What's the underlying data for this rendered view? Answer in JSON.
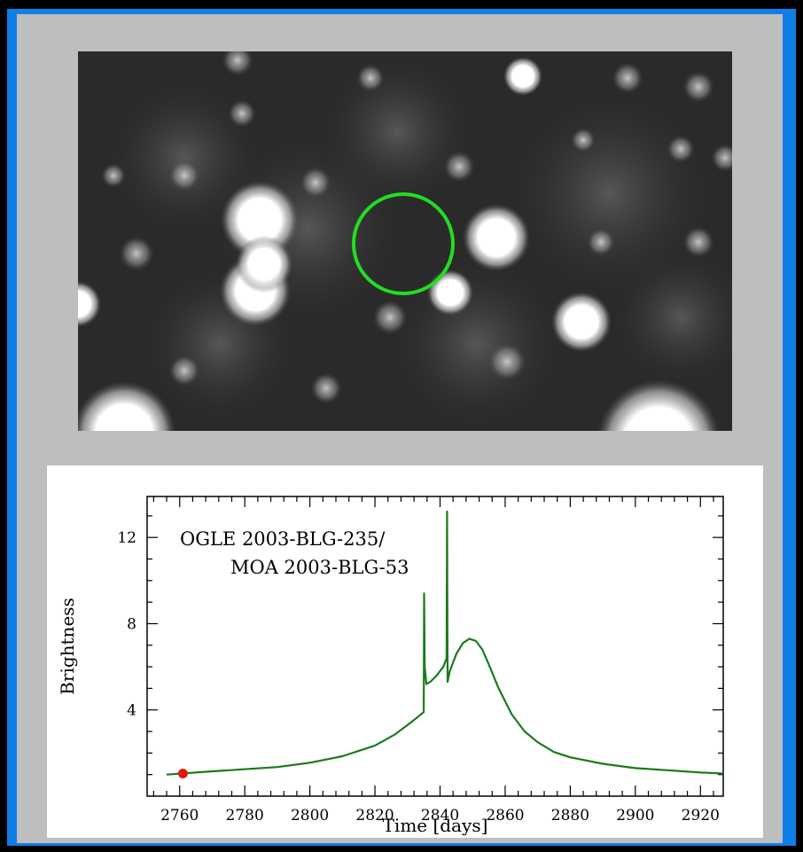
{
  "colors": {
    "frame": "#0f7fe8",
    "panel": "#bebebe",
    "curve": "#1b7a1b",
    "marker": "#e3170a",
    "target_circle": "#22dd22"
  },
  "image": {
    "description_icon": "starfield-image"
  },
  "chart_data": {
    "type": "line",
    "title": [
      "OGLE 2003-BLG-235/",
      "MOA 2003-BLG-53"
    ],
    "xlabel": "Time [days]",
    "ylabel": "Brightness",
    "xlim": [
      2750,
      2927
    ],
    "ylim": [
      0,
      13.9
    ],
    "xticks": [
      2760,
      2780,
      2800,
      2820,
      2840,
      2860,
      2880,
      2900,
      2920
    ],
    "yticks": [
      4,
      8,
      12
    ],
    "xtick_labels": [
      "2760",
      "2780",
      "2800",
      "2820",
      "2840",
      "2860",
      "2880",
      "2900",
      "2920"
    ],
    "ytick_labels": [
      "4",
      "8",
      "12"
    ],
    "series": [
      {
        "x": [
          2756,
          2770,
          2790,
          2800,
          2810,
          2820,
          2826,
          2830,
          2833,
          2835,
          2835.1,
          2835.3,
          2835.8,
          2837,
          2839,
          2841,
          2842,
          2842.15,
          2842.3,
          2843,
          2845,
          2847,
          2849,
          2851,
          2853,
          2855,
          2858,
          2862,
          2866,
          2870,
          2875,
          2880,
          2890,
          2900,
          2910,
          2920,
          2927
        ],
        "y": [
          1.0,
          1.15,
          1.35,
          1.55,
          1.85,
          2.35,
          2.85,
          3.3,
          3.65,
          3.9,
          9.4,
          6.0,
          5.2,
          5.3,
          5.6,
          6.0,
          6.4,
          13.2,
          5.3,
          5.8,
          6.6,
          7.1,
          7.3,
          7.2,
          6.8,
          6.1,
          5.0,
          3.8,
          3.0,
          2.5,
          2.05,
          1.8,
          1.5,
          1.3,
          1.2,
          1.1,
          1.05
        ]
      }
    ],
    "markers": [
      {
        "x": 2761,
        "y": 1.05
      }
    ]
  }
}
